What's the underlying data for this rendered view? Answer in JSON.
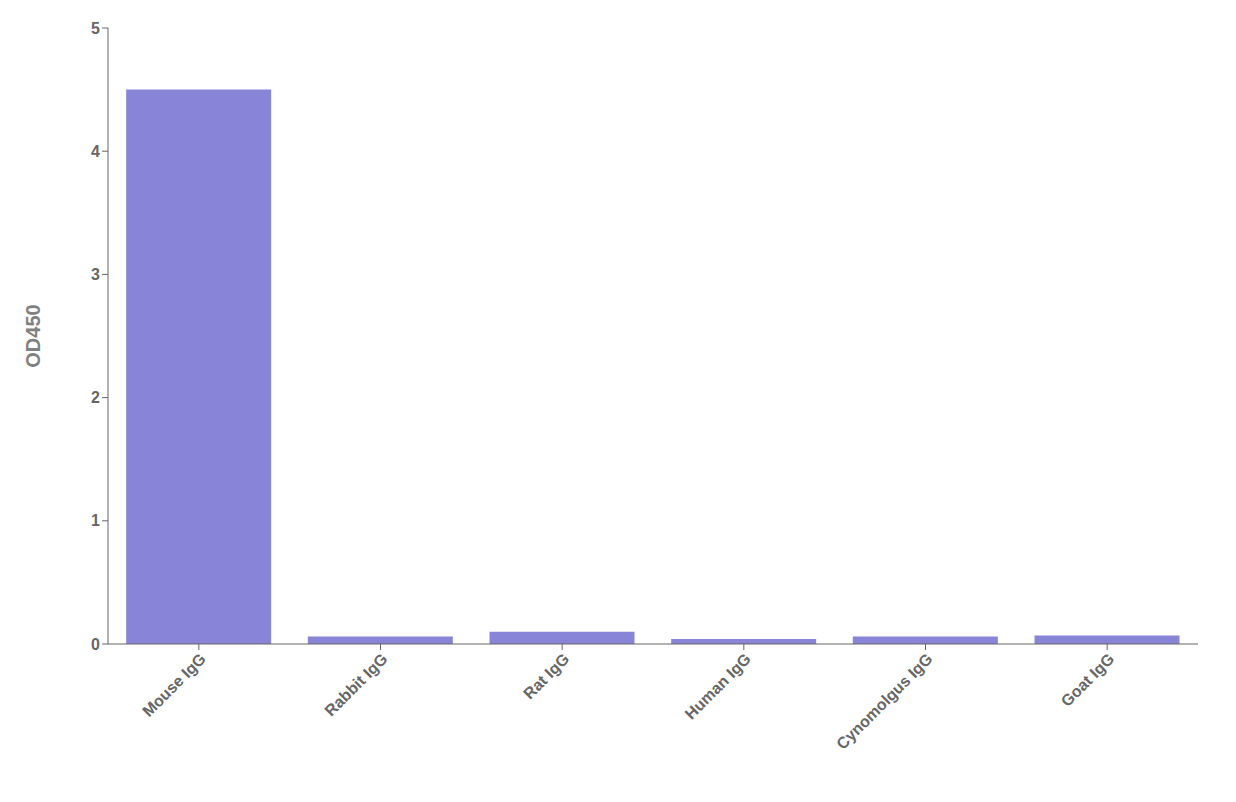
{
  "chart_data": {
    "type": "bar",
    "categories": [
      "Mouse IgG",
      "Rabbit IgG",
      "Rat IgG",
      "Human IgG",
      "Cynomolgus IgG",
      "Goat IgG"
    ],
    "values": [
      4.5,
      0.06,
      0.1,
      0.04,
      0.06,
      0.07
    ],
    "ylabel": "OD450",
    "ylim": [
      0,
      5
    ],
    "yticks": [
      0,
      1,
      2,
      3,
      4,
      5
    ],
    "grid": false
  }
}
